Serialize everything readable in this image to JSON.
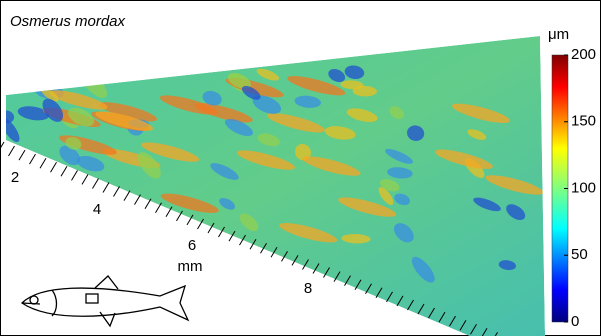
{
  "title": "Osmerus mordax",
  "colorbar": {
    "unit": "μm",
    "ticks": [
      200,
      150,
      100,
      50,
      0
    ]
  },
  "axis": {
    "ticks": [
      2,
      4,
      6,
      8
    ],
    "label": "mm"
  }
}
